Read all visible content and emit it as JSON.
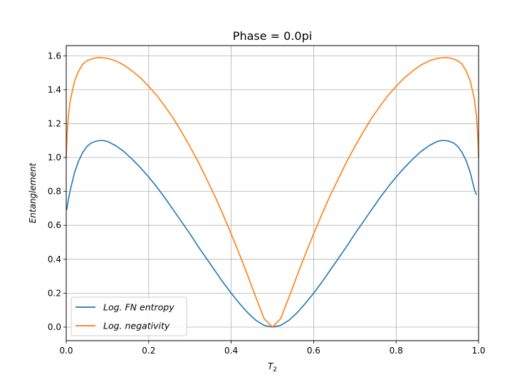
{
  "chart_data": {
    "type": "line",
    "title": "Phase = 0.0pi",
    "xlabel": "T",
    "xlabel_sub": "2",
    "ylabel": "Entanglement",
    "xlim": [
      0.0,
      1.0
    ],
    "ylim": [
      -0.08,
      1.66
    ],
    "xticks": [
      0.0,
      0.2,
      0.4,
      0.6,
      0.8,
      1.0
    ],
    "xtick_labels": [
      "0.0",
      "0.2",
      "0.4",
      "0.6",
      "0.8",
      "1.0"
    ],
    "yticks": [
      0.0,
      0.2,
      0.4,
      0.6,
      0.8,
      1.0,
      1.2,
      1.4,
      1.6
    ],
    "ytick_labels": [
      "0.0",
      "0.2",
      "0.4",
      "0.6",
      "0.8",
      "1.0",
      "1.2",
      "1.4",
      "1.6"
    ],
    "grid": true,
    "legend_position": "lower-left",
    "series": [
      {
        "name": "Log. FN entropy",
        "color": "#1f77b4",
        "x": [
          0.001,
          0.005,
          0.01,
          0.02,
          0.03,
          0.04,
          0.05,
          0.06,
          0.07,
          0.08,
          0.09,
          0.1,
          0.12,
          0.14,
          0.16,
          0.18,
          0.2,
          0.22,
          0.24,
          0.26,
          0.28,
          0.3,
          0.32,
          0.34,
          0.36,
          0.38,
          0.4,
          0.42,
          0.44,
          0.46,
          0.48,
          0.5,
          0.52,
          0.54,
          0.56,
          0.58,
          0.6,
          0.62,
          0.64,
          0.66,
          0.68,
          0.7,
          0.72,
          0.74,
          0.76,
          0.78,
          0.8,
          0.82,
          0.84,
          0.86,
          0.88,
          0.9,
          0.91,
          0.92,
          0.93,
          0.94,
          0.95,
          0.96,
          0.97,
          0.98,
          0.99,
          0.995
        ],
        "y": [
          0.69,
          0.75,
          0.81,
          0.91,
          0.98,
          1.03,
          1.065,
          1.085,
          1.095,
          1.1,
          1.1,
          1.095,
          1.07,
          1.035,
          0.99,
          0.94,
          0.885,
          0.825,
          0.76,
          0.69,
          0.62,
          0.55,
          0.475,
          0.405,
          0.335,
          0.265,
          0.2,
          0.14,
          0.085,
          0.04,
          0.01,
          0.0,
          0.01,
          0.04,
          0.085,
          0.14,
          0.2,
          0.265,
          0.335,
          0.405,
          0.475,
          0.55,
          0.62,
          0.69,
          0.76,
          0.825,
          0.885,
          0.94,
          0.99,
          1.035,
          1.07,
          1.095,
          1.1,
          1.1,
          1.095,
          1.085,
          1.065,
          1.03,
          0.98,
          0.91,
          0.81,
          0.78
        ]
      },
      {
        "name": "Log. negativity",
        "color": "#ff7f0e",
        "x": [
          0.0,
          0.002,
          0.005,
          0.01,
          0.02,
          0.03,
          0.04,
          0.05,
          0.06,
          0.07,
          0.08,
          0.09,
          0.1,
          0.12,
          0.14,
          0.16,
          0.18,
          0.2,
          0.22,
          0.24,
          0.26,
          0.28,
          0.3,
          0.32,
          0.34,
          0.36,
          0.38,
          0.4,
          0.42,
          0.44,
          0.46,
          0.48,
          0.5,
          0.52,
          0.54,
          0.56,
          0.58,
          0.6,
          0.62,
          0.64,
          0.66,
          0.68,
          0.7,
          0.72,
          0.74,
          0.76,
          0.78,
          0.8,
          0.82,
          0.84,
          0.86,
          0.88,
          0.9,
          0.91,
          0.92,
          0.93,
          0.94,
          0.95,
          0.96,
          0.97,
          0.98,
          0.99,
          0.995,
          0.998,
          1.0
        ],
        "y": [
          1.0,
          1.13,
          1.24,
          1.34,
          1.45,
          1.51,
          1.55,
          1.57,
          1.58,
          1.587,
          1.59,
          1.588,
          1.585,
          1.57,
          1.545,
          1.51,
          1.47,
          1.42,
          1.365,
          1.3,
          1.23,
          1.15,
          1.065,
          0.975,
          0.875,
          0.775,
          0.665,
          0.55,
          0.43,
          0.305,
          0.175,
          0.05,
          0.0,
          0.05,
          0.175,
          0.305,
          0.43,
          0.55,
          0.665,
          0.775,
          0.875,
          0.975,
          1.065,
          1.15,
          1.23,
          1.3,
          1.365,
          1.42,
          1.47,
          1.51,
          1.545,
          1.57,
          1.585,
          1.588,
          1.59,
          1.587,
          1.58,
          1.57,
          1.55,
          1.51,
          1.45,
          1.34,
          1.24,
          1.13,
          1.0
        ]
      }
    ]
  }
}
